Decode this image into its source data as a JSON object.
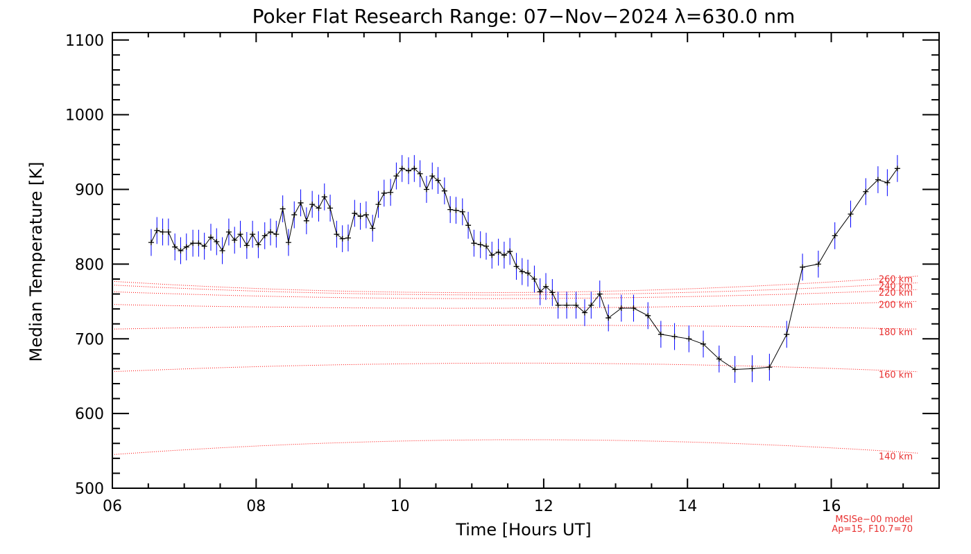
{
  "chart_data": {
    "type": "line",
    "title": "Poker Flat Research Range: 07−Nov−2024 λ=630.0 nm",
    "xlabel": "Time [Hours UT]",
    "ylabel": "Median Temperature [K]",
    "xlim": [
      6,
      17.5
    ],
    "ylim": [
      500,
      1110
    ],
    "x_ticks": [
      6,
      8,
      10,
      12,
      14,
      16
    ],
    "x_tick_labels": [
      "06",
      "08",
      "10",
      "12",
      "14",
      "16"
    ],
    "y_ticks": [
      500,
      600,
      700,
      800,
      900,
      1000,
      1100
    ],
    "y_tick_labels": [
      "500",
      "600",
      "700",
      "800",
      "900",
      "1000",
      "1100"
    ],
    "grid": false,
    "legend": "none",
    "colors": {
      "data": "#000000",
      "errorbars": "#0000ff",
      "model": "#ff0000"
    },
    "series": [
      {
        "x": [
          6.54,
          6.62,
          6.7,
          6.78,
          6.87,
          6.95,
          7.03,
          7.12,
          7.2,
          7.28,
          7.37,
          7.45,
          7.53,
          7.62,
          7.7,
          7.78,
          7.87,
          7.95,
          8.03,
          8.12,
          8.2,
          8.28,
          8.37,
          8.45,
          8.53,
          8.62,
          8.7,
          8.78,
          8.87,
          8.95,
          9.03,
          9.12,
          9.2,
          9.28,
          9.37,
          9.45,
          9.53,
          9.62,
          9.7,
          9.78,
          9.87,
          9.95,
          10.03,
          10.12,
          10.2,
          10.28,
          10.37,
          10.45,
          10.53,
          10.62,
          10.7,
          10.78,
          10.87,
          10.95,
          11.03,
          11.12,
          11.2,
          11.28,
          11.37,
          11.45,
          11.53,
          11.62,
          11.7,
          11.78,
          11.87,
          11.95,
          12.03,
          12.12,
          12.2,
          12.32,
          12.45,
          12.57,
          12.66,
          12.78,
          12.9,
          13.08,
          13.25,
          13.45,
          13.63,
          13.82,
          14.02,
          14.22,
          14.44,
          14.66,
          14.9,
          15.14,
          15.38,
          15.6,
          15.82,
          16.05,
          16.27,
          16.48,
          16.65,
          16.78,
          16.92
        ],
        "values": [
          829,
          845,
          843,
          843,
          823,
          818,
          823,
          828,
          828,
          824,
          836,
          830,
          818,
          843,
          832,
          840,
          825,
          840,
          826,
          838,
          843,
          840,
          874,
          829,
          866,
          882,
          858,
          880,
          875,
          890,
          875,
          840,
          834,
          835,
          868,
          864,
          866,
          848,
          880,
          895,
          896,
          918,
          928,
          925,
          928,
          921,
          900,
          918,
          912,
          898,
          873,
          872,
          870,
          852,
          828,
          826,
          824,
          812,
          816,
          812,
          817,
          797,
          790,
          788,
          780,
          763,
          770,
          762,
          745,
          745,
          745,
          735,
          745,
          760,
          728,
          741,
          741,
          731,
          706,
          703,
          700,
          693,
          673,
          659,
          660,
          662,
          706,
          796,
          800,
          838,
          867,
          897,
          913,
          909,
          928
        ],
        "error": 18
      }
    ],
    "model_curves": [
      {
        "label": "140 km",
        "x": [
          6.0,
          10.5,
          17.2
        ],
        "values": [
          545,
          564,
          547
        ]
      },
      {
        "label": "160 km",
        "x": [
          6.0,
          10.5,
          17.2
        ],
        "values": [
          656,
          667,
          656
        ]
      },
      {
        "label": "180 km",
        "x": [
          6.0,
          10.5,
          17.2
        ],
        "values": [
          713,
          718,
          713
        ]
      },
      {
        "label": "200 km",
        "x": [
          6.0,
          10.5,
          17.2
        ],
        "values": [
          746,
          741,
          750
        ]
      },
      {
        "label": "220 km",
        "x": [
          6.0,
          10.5,
          17.2
        ],
        "values": [
          763,
          754,
          766
        ]
      },
      {
        "label": "240 km",
        "x": [
          6.0,
          10.5,
          17.2
        ],
        "values": [
          772,
          759,
          775
        ]
      },
      {
        "label": "260 km",
        "x": [
          6.0,
          10.5,
          17.2
        ],
        "values": [
          777,
          762,
          784
        ]
      }
    ]
  },
  "annotation": {
    "line1": "MSISe−00 model",
    "line2": "Ap=15, F10.7=70"
  }
}
